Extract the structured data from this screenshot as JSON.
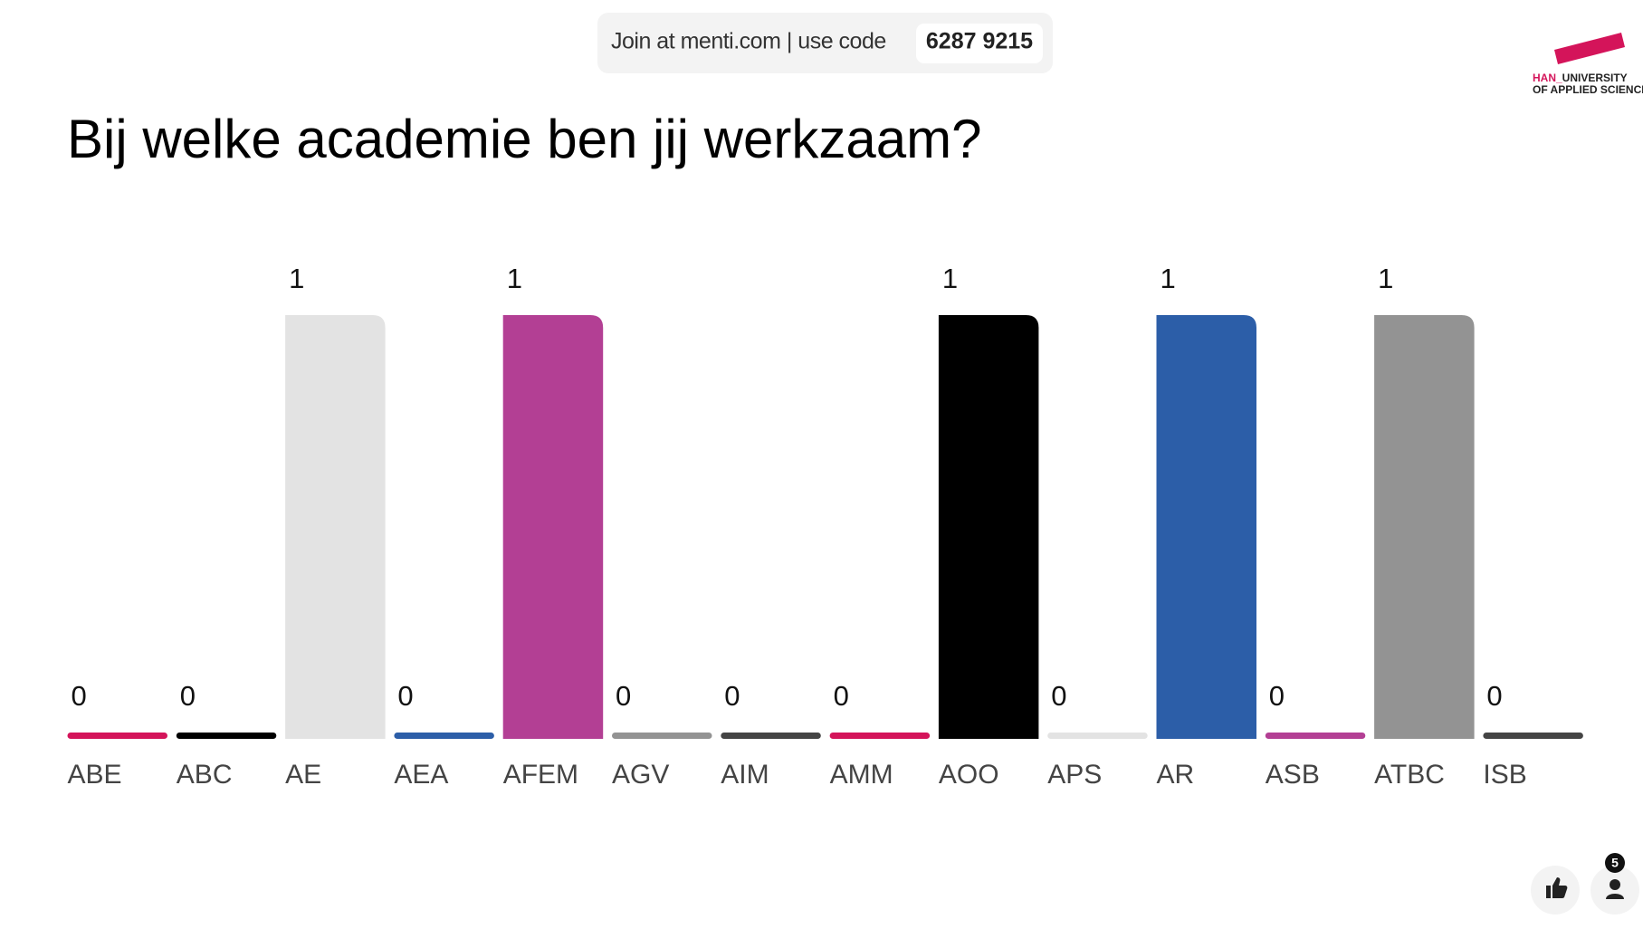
{
  "banner": {
    "text": "Join at menti.com | use code",
    "code": "6287 9215"
  },
  "logo": {
    "prefix": "HAN_",
    "line1": "UNIVERSITY",
    "line2": "OF APPLIED SCIENCES"
  },
  "footer": {
    "participants": 5
  },
  "chart_data": {
    "type": "bar",
    "title": "Bij welke academie ben jij werkzaam?",
    "categories": [
      "ABE",
      "ABC",
      "AE",
      "AEA",
      "AFEM",
      "AGV",
      "AIM",
      "AMM",
      "AOO",
      "APS",
      "AR",
      "ASB",
      "ATBC",
      "ISB"
    ],
    "values": [
      0,
      0,
      1,
      0,
      1,
      0,
      0,
      0,
      1,
      0,
      1,
      0,
      1,
      0
    ],
    "colors": [
      "#d4145a",
      "#000000",
      "#e3e3e3",
      "#2c5ea8",
      "#b33f94",
      "#939393",
      "#444444",
      "#d4145a",
      "#000000",
      "#e3e3e3",
      "#2c5ea8",
      "#b33f94",
      "#939393",
      "#444444"
    ]
  }
}
